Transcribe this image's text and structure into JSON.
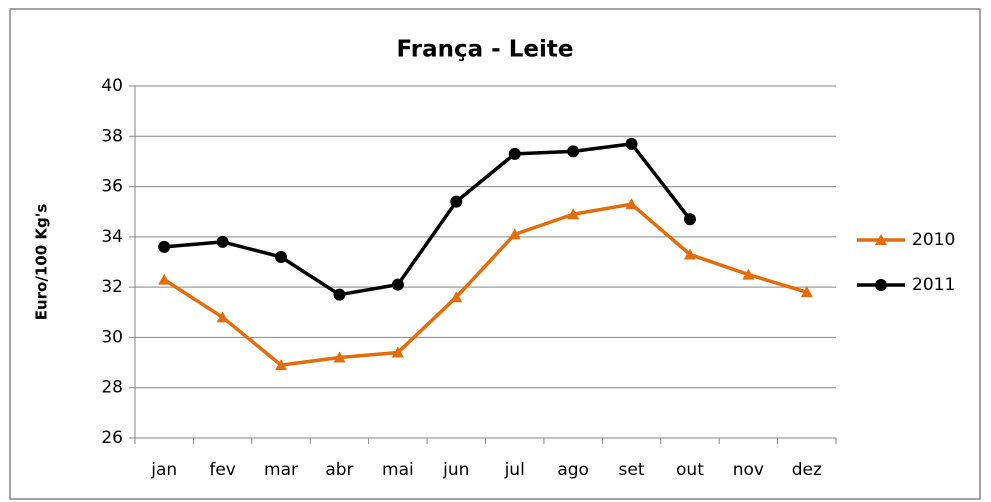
{
  "chart_data": {
    "type": "line",
    "title": "França - Leite",
    "y_label": "Euro/100 Kg's",
    "categories": [
      "jan",
      "fev",
      "mar",
      "abr",
      "mai",
      "jun",
      "jul",
      "ago",
      "set",
      "out",
      "nov",
      "dez"
    ],
    "series": [
      {
        "name": "2010",
        "color": "#e46c0a",
        "marker": "triangle",
        "values": [
          32.3,
          30.8,
          28.9,
          29.2,
          29.4,
          31.6,
          34.1,
          34.9,
          35.3,
          33.3,
          32.5,
          31.8
        ]
      },
      {
        "name": "2011",
        "color": "#000000",
        "marker": "circle",
        "values": [
          33.6,
          33.8,
          33.2,
          31.7,
          32.1,
          35.4,
          37.3,
          37.4,
          37.7,
          34.7,
          null,
          null
        ]
      }
    ],
    "ylim": [
      26,
      40
    ],
    "yticks": [
      26,
      28,
      30,
      32,
      34,
      36,
      38,
      40
    ],
    "grid": true,
    "legend": "right"
  }
}
